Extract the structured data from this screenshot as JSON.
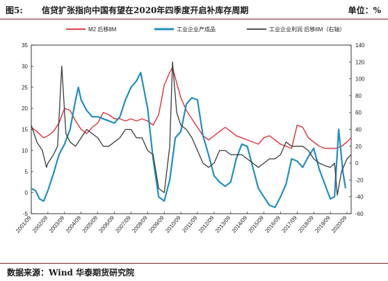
{
  "header": {
    "figure_label": "图5:",
    "title": "信贷扩张指向中国有望在2020年四季度开启补库存周期",
    "unit": "单位：%"
  },
  "footer": {
    "source": "数据来源：Wind  华泰期货研究院"
  },
  "colors": {
    "m2": "#e0202a",
    "industrial": "#1f8fc0",
    "profit": "#3a3a3a",
    "accent": "#7a1f2b"
  },
  "chart_data": {
    "type": "line",
    "left_axis": {
      "ylim": [
        -5,
        35
      ],
      "ticks": [
        -5,
        0,
        5,
        10,
        15,
        20,
        25,
        30,
        35
      ]
    },
    "right_axis": {
      "ylim": [
        -60,
        140
      ],
      "ticks": [
        -60,
        -40,
        -20,
        0,
        20,
        40,
        60,
        80,
        100,
        120,
        140
      ]
    },
    "x_ticks": [
      "2001/09",
      "2002/09",
      "2003/09",
      "2004/09",
      "2005/09",
      "2006/09",
      "2007/09",
      "2008/09",
      "2009/09",
      "2010/09",
      "2011/09",
      "2012/09",
      "2013/09",
      "2014/09",
      "2015/09",
      "2016/09",
      "2017/09",
      "2018/09",
      "2019/09",
      "2020/09"
    ],
    "x_range": [
      "2001/09",
      "2020/12"
    ],
    "grid": false,
    "legend_position": "top",
    "series": [
      {
        "name": "M2 后移8M",
        "axis": "left",
        "color": "#e0202a",
        "points": [
          [
            "2001/09",
            15.5
          ],
          [
            "2002/01",
            14.5
          ],
          [
            "2002/06",
            13.0
          ],
          [
            "2002/09",
            13.5
          ],
          [
            "2003/01",
            14.5
          ],
          [
            "2003/05",
            16.5
          ],
          [
            "2003/09",
            20.0
          ],
          [
            "2004/01",
            19.5
          ],
          [
            "2004/05",
            17.0
          ],
          [
            "2004/09",
            15.0
          ],
          [
            "2005/01",
            14.0
          ],
          [
            "2005/05",
            15.5
          ],
          [
            "2005/09",
            16.5
          ],
          [
            "2006/01",
            19.0
          ],
          [
            "2006/05",
            18.5
          ],
          [
            "2006/09",
            17.5
          ],
          [
            "2007/01",
            17.5
          ],
          [
            "2007/05",
            17.0
          ],
          [
            "2007/09",
            17.5
          ],
          [
            "2008/01",
            17.0
          ],
          [
            "2008/05",
            17.5
          ],
          [
            "2008/09",
            17.0
          ],
          [
            "2009/01",
            16.0
          ],
          [
            "2009/05",
            18.5
          ],
          [
            "2009/09",
            25.5
          ],
          [
            "2010/01",
            28.5
          ],
          [
            "2010/03",
            29.7
          ],
          [
            "2010/06",
            26.0
          ],
          [
            "2010/09",
            22.5
          ],
          [
            "2011/01",
            19.5
          ],
          [
            "2011/05",
            17.5
          ],
          [
            "2011/09",
            15.5
          ],
          [
            "2012/01",
            13.5
          ],
          [
            "2012/05",
            12.5
          ],
          [
            "2012/09",
            13.5
          ],
          [
            "2013/01",
            14.5
          ],
          [
            "2013/05",
            15.5
          ],
          [
            "2013/09",
            14.5
          ],
          [
            "2014/01",
            13.5
          ],
          [
            "2014/05",
            13.0
          ],
          [
            "2014/09",
            12.5
          ],
          [
            "2015/01",
            12.0
          ],
          [
            "2015/05",
            11.5
          ],
          [
            "2015/09",
            13.0
          ],
          [
            "2016/01",
            13.5
          ],
          [
            "2016/05",
            12.5
          ],
          [
            "2016/09",
            11.5
          ],
          [
            "2017/01",
            11.0
          ],
          [
            "2017/05",
            10.5
          ],
          [
            "2017/09",
            16.0
          ],
          [
            "2018/01",
            15.5
          ],
          [
            "2018/05",
            13.0
          ],
          [
            "2018/09",
            12.0
          ],
          [
            "2019/01",
            11.0
          ],
          [
            "2019/05",
            10.5
          ],
          [
            "2019/09",
            10.5
          ],
          [
            "2020/01",
            10.5
          ],
          [
            "2020/05",
            11.0
          ],
          [
            "2020/09",
            12.0
          ],
          [
            "2020/12",
            13.0
          ]
        ]
      },
      {
        "name": "工业企业产成品",
        "axis": "left",
        "color": "#1f8fc0",
        "points": [
          [
            "2001/09",
            1.0
          ],
          [
            "2001/12",
            0.5
          ],
          [
            "2002/03",
            -1.5
          ],
          [
            "2002/06",
            -2.0
          ],
          [
            "2002/09",
            0.5
          ],
          [
            "2003/01",
            4.5
          ],
          [
            "2003/05",
            9.0
          ],
          [
            "2003/09",
            11.5
          ],
          [
            "2004/01",
            15.0
          ],
          [
            "2004/05",
            22.0
          ],
          [
            "2004/07",
            25.0
          ],
          [
            "2004/09",
            22.0
          ],
          [
            "2005/01",
            19.5
          ],
          [
            "2005/05",
            18.0
          ],
          [
            "2005/09",
            18.0
          ],
          [
            "2006/01",
            17.5
          ],
          [
            "2006/05",
            17.0
          ],
          [
            "2006/09",
            16.5
          ],
          [
            "2007/01",
            18.0
          ],
          [
            "2007/05",
            22.0
          ],
          [
            "2007/09",
            25.0
          ],
          [
            "2008/01",
            26.5
          ],
          [
            "2008/04",
            28.5
          ],
          [
            "2008/09",
            20.0
          ],
          [
            "2009/01",
            8.0
          ],
          [
            "2009/05",
            -1.0
          ],
          [
            "2009/09",
            -2.0
          ],
          [
            "2010/01",
            3.0
          ],
          [
            "2010/05",
            13.0
          ],
          [
            "2010/09",
            14.5
          ],
          [
            "2011/01",
            21.0
          ],
          [
            "2011/05",
            22.5
          ],
          [
            "2011/09",
            22.0
          ],
          [
            "2012/01",
            13.5
          ],
          [
            "2012/05",
            9.0
          ],
          [
            "2012/09",
            4.0
          ],
          [
            "2013/01",
            2.5
          ],
          [
            "2013/05",
            1.5
          ],
          [
            "2013/09",
            2.5
          ],
          [
            "2014/01",
            8.0
          ],
          [
            "2014/05",
            11.5
          ],
          [
            "2014/09",
            11.0
          ],
          [
            "2015/01",
            6.0
          ],
          [
            "2015/05",
            1.0
          ],
          [
            "2015/09",
            -1.0
          ],
          [
            "2016/01",
            -3.0
          ],
          [
            "2016/05",
            -3.5
          ],
          [
            "2016/09",
            -1.0
          ],
          [
            "2017/01",
            2.0
          ],
          [
            "2017/05",
            8.0
          ],
          [
            "2017/09",
            7.5
          ],
          [
            "2018/01",
            6.0
          ],
          [
            "2018/05",
            8.5
          ],
          [
            "2018/09",
            10.5
          ],
          [
            "2019/01",
            5.5
          ],
          [
            "2019/05",
            2.0
          ],
          [
            "2019/09",
            -1.5
          ],
          [
            "2019/12",
            -1.0
          ],
          [
            "2020/03",
            15.0
          ],
          [
            "2020/06",
            5.0
          ],
          [
            "2020/08",
            1.0
          ]
        ]
      },
      {
        "name": "工业企业利润 后移6M（右轴）",
        "axis": "right",
        "color": "#3a3a3a",
        "points": [
          [
            "2001/09",
            45
          ],
          [
            "2002/01",
            25
          ],
          [
            "2002/05",
            15
          ],
          [
            "2002/08",
            -5
          ],
          [
            "2002/09",
            0
          ],
          [
            "2003/01",
            10
          ],
          [
            "2003/04",
            20
          ],
          [
            "2003/07",
            115
          ],
          [
            "2003/10",
            35
          ],
          [
            "2004/01",
            25
          ],
          [
            "2004/05",
            20
          ],
          [
            "2004/09",
            30
          ],
          [
            "2005/01",
            40
          ],
          [
            "2005/05",
            35
          ],
          [
            "2005/09",
            30
          ],
          [
            "2006/01",
            20
          ],
          [
            "2006/05",
            20
          ],
          [
            "2006/09",
            25
          ],
          [
            "2007/01",
            30
          ],
          [
            "2007/05",
            40
          ],
          [
            "2007/09",
            40
          ],
          [
            "2008/01",
            30
          ],
          [
            "2008/05",
            30
          ],
          [
            "2008/09",
            15
          ],
          [
            "2009/01",
            10
          ],
          [
            "2009/05",
            -30
          ],
          [
            "2009/09",
            -35
          ],
          [
            "2010/01",
            20
          ],
          [
            "2010/03",
            120
          ],
          [
            "2010/06",
            60
          ],
          [
            "2010/09",
            45
          ],
          [
            "2011/01",
            40
          ],
          [
            "2011/05",
            30
          ],
          [
            "2011/09",
            15
          ],
          [
            "2012/01",
            0
          ],
          [
            "2012/05",
            -5
          ],
          [
            "2012/09",
            0
          ],
          [
            "2013/01",
            15
          ],
          [
            "2013/05",
            15
          ],
          [
            "2013/09",
            10
          ],
          [
            "2014/01",
            10
          ],
          [
            "2014/05",
            10
          ],
          [
            "2014/09",
            5
          ],
          [
            "2015/01",
            0
          ],
          [
            "2015/05",
            -5
          ],
          [
            "2015/09",
            0
          ],
          [
            "2016/01",
            5
          ],
          [
            "2016/05",
            5
          ],
          [
            "2016/09",
            10
          ],
          [
            "2017/01",
            25
          ],
          [
            "2017/05",
            20
          ],
          [
            "2017/09",
            20
          ],
          [
            "2018/01",
            20
          ],
          [
            "2018/05",
            15
          ],
          [
            "2018/09",
            5
          ],
          [
            "2019/01",
            0
          ],
          [
            "2019/05",
            -3
          ],
          [
            "2019/09",
            -5
          ],
          [
            "2019/12",
            0
          ],
          [
            "2020/02",
            -38
          ],
          [
            "2020/05",
            -10
          ],
          [
            "2020/09",
            5
          ],
          [
            "2020/12",
            10
          ]
        ]
      }
    ]
  }
}
